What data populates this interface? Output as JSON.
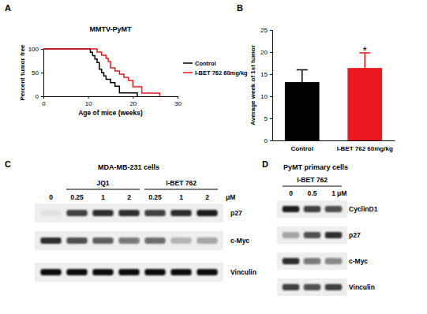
{
  "chart_data": [
    {
      "type": "step",
      "title": "MMTV-PyMT",
      "xlabel": "Age of mice (weeks)",
      "ylabel": "Percent tumor free",
      "xlim": [
        0,
        30
      ],
      "xticks": [
        0,
        10,
        20,
        30
      ],
      "ylim": [
        0,
        100
      ],
      "yticks": [
        0,
        50,
        100
      ],
      "legend": "right",
      "series": [
        {
          "name": "Control",
          "color": "#000000",
          "x": [
            0,
            10.5,
            11,
            11.5,
            12,
            12.5,
            13,
            13.5,
            14,
            15,
            16,
            17,
            21
          ],
          "values": [
            100,
            92.9,
            85.7,
            78.6,
            71.4,
            57.1,
            50,
            42.9,
            35.7,
            28.6,
            21.4,
            7.1,
            0
          ]
        },
        {
          "name": "I-BET 762 60mg/kg",
          "color": "#e8191f",
          "x": [
            0,
            12,
            13,
            14,
            14.5,
            15,
            16,
            17,
            18,
            19,
            20,
            22,
            26
          ],
          "values": [
            100,
            93.3,
            86.7,
            80,
            73.3,
            60,
            53.3,
            46.7,
            40,
            33.3,
            20,
            6.7,
            0
          ]
        }
      ]
    },
    {
      "type": "bar",
      "ylabel": "Average week of 1st tumor",
      "categories": [
        "Control",
        "I-BET 762 60mg/kg"
      ],
      "values": [
        13.2,
        16.4
      ],
      "errors": [
        2.8,
        3.4
      ],
      "colors": [
        "#000000",
        "#e8191f"
      ],
      "ylim": [
        0,
        25
      ],
      "yticks": [
        0,
        5,
        10,
        15,
        20,
        25
      ],
      "annotations": [
        {
          "text": "*",
          "category": 1
        }
      ]
    }
  ],
  "panel_labels": [
    "A",
    "B",
    "C",
    "D"
  ],
  "blots": [
    {
      "title": "MDA-MB-231 cells",
      "groups": [
        {
          "label": "JQ1",
          "lanes": [
            1,
            3
          ]
        },
        {
          "label": "I-BET 762",
          "lanes": [
            4,
            6
          ]
        }
      ],
      "lanes": [
        "0",
        "0.25",
        "1",
        "2",
        "0.25",
        "1",
        "2"
      ],
      "unit": "μM",
      "bands": [
        {
          "label": "p27",
          "values": [
            0.2,
            0.8,
            0.85,
            0.85,
            0.8,
            0.85,
            0.9
          ]
        },
        {
          "label": "c-Myc",
          "values": [
            0.85,
            0.75,
            0.7,
            0.6,
            0.65,
            0.4,
            0.45
          ]
        },
        {
          "label": "Vinculin",
          "values": [
            0.95,
            0.95,
            0.95,
            0.95,
            0.95,
            0.95,
            0.95
          ]
        }
      ]
    },
    {
      "title": "PyMT primary cells",
      "groups": [
        {
          "label": "I-BET 762",
          "lanes": [
            0,
            2
          ]
        }
      ],
      "lanes": [
        "0",
        "0.5",
        "1"
      ],
      "unit": "μM",
      "bands": [
        {
          "label": "CyclinD1",
          "values": [
            0.9,
            0.8,
            0.75
          ]
        },
        {
          "label": "p27",
          "values": [
            0.45,
            0.75,
            0.85
          ]
        },
        {
          "label": "c-Myc",
          "values": [
            0.85,
            0.6,
            0.55
          ]
        },
        {
          "label": "Vinculin",
          "values": [
            0.8,
            0.75,
            0.8
          ]
        }
      ]
    }
  ]
}
